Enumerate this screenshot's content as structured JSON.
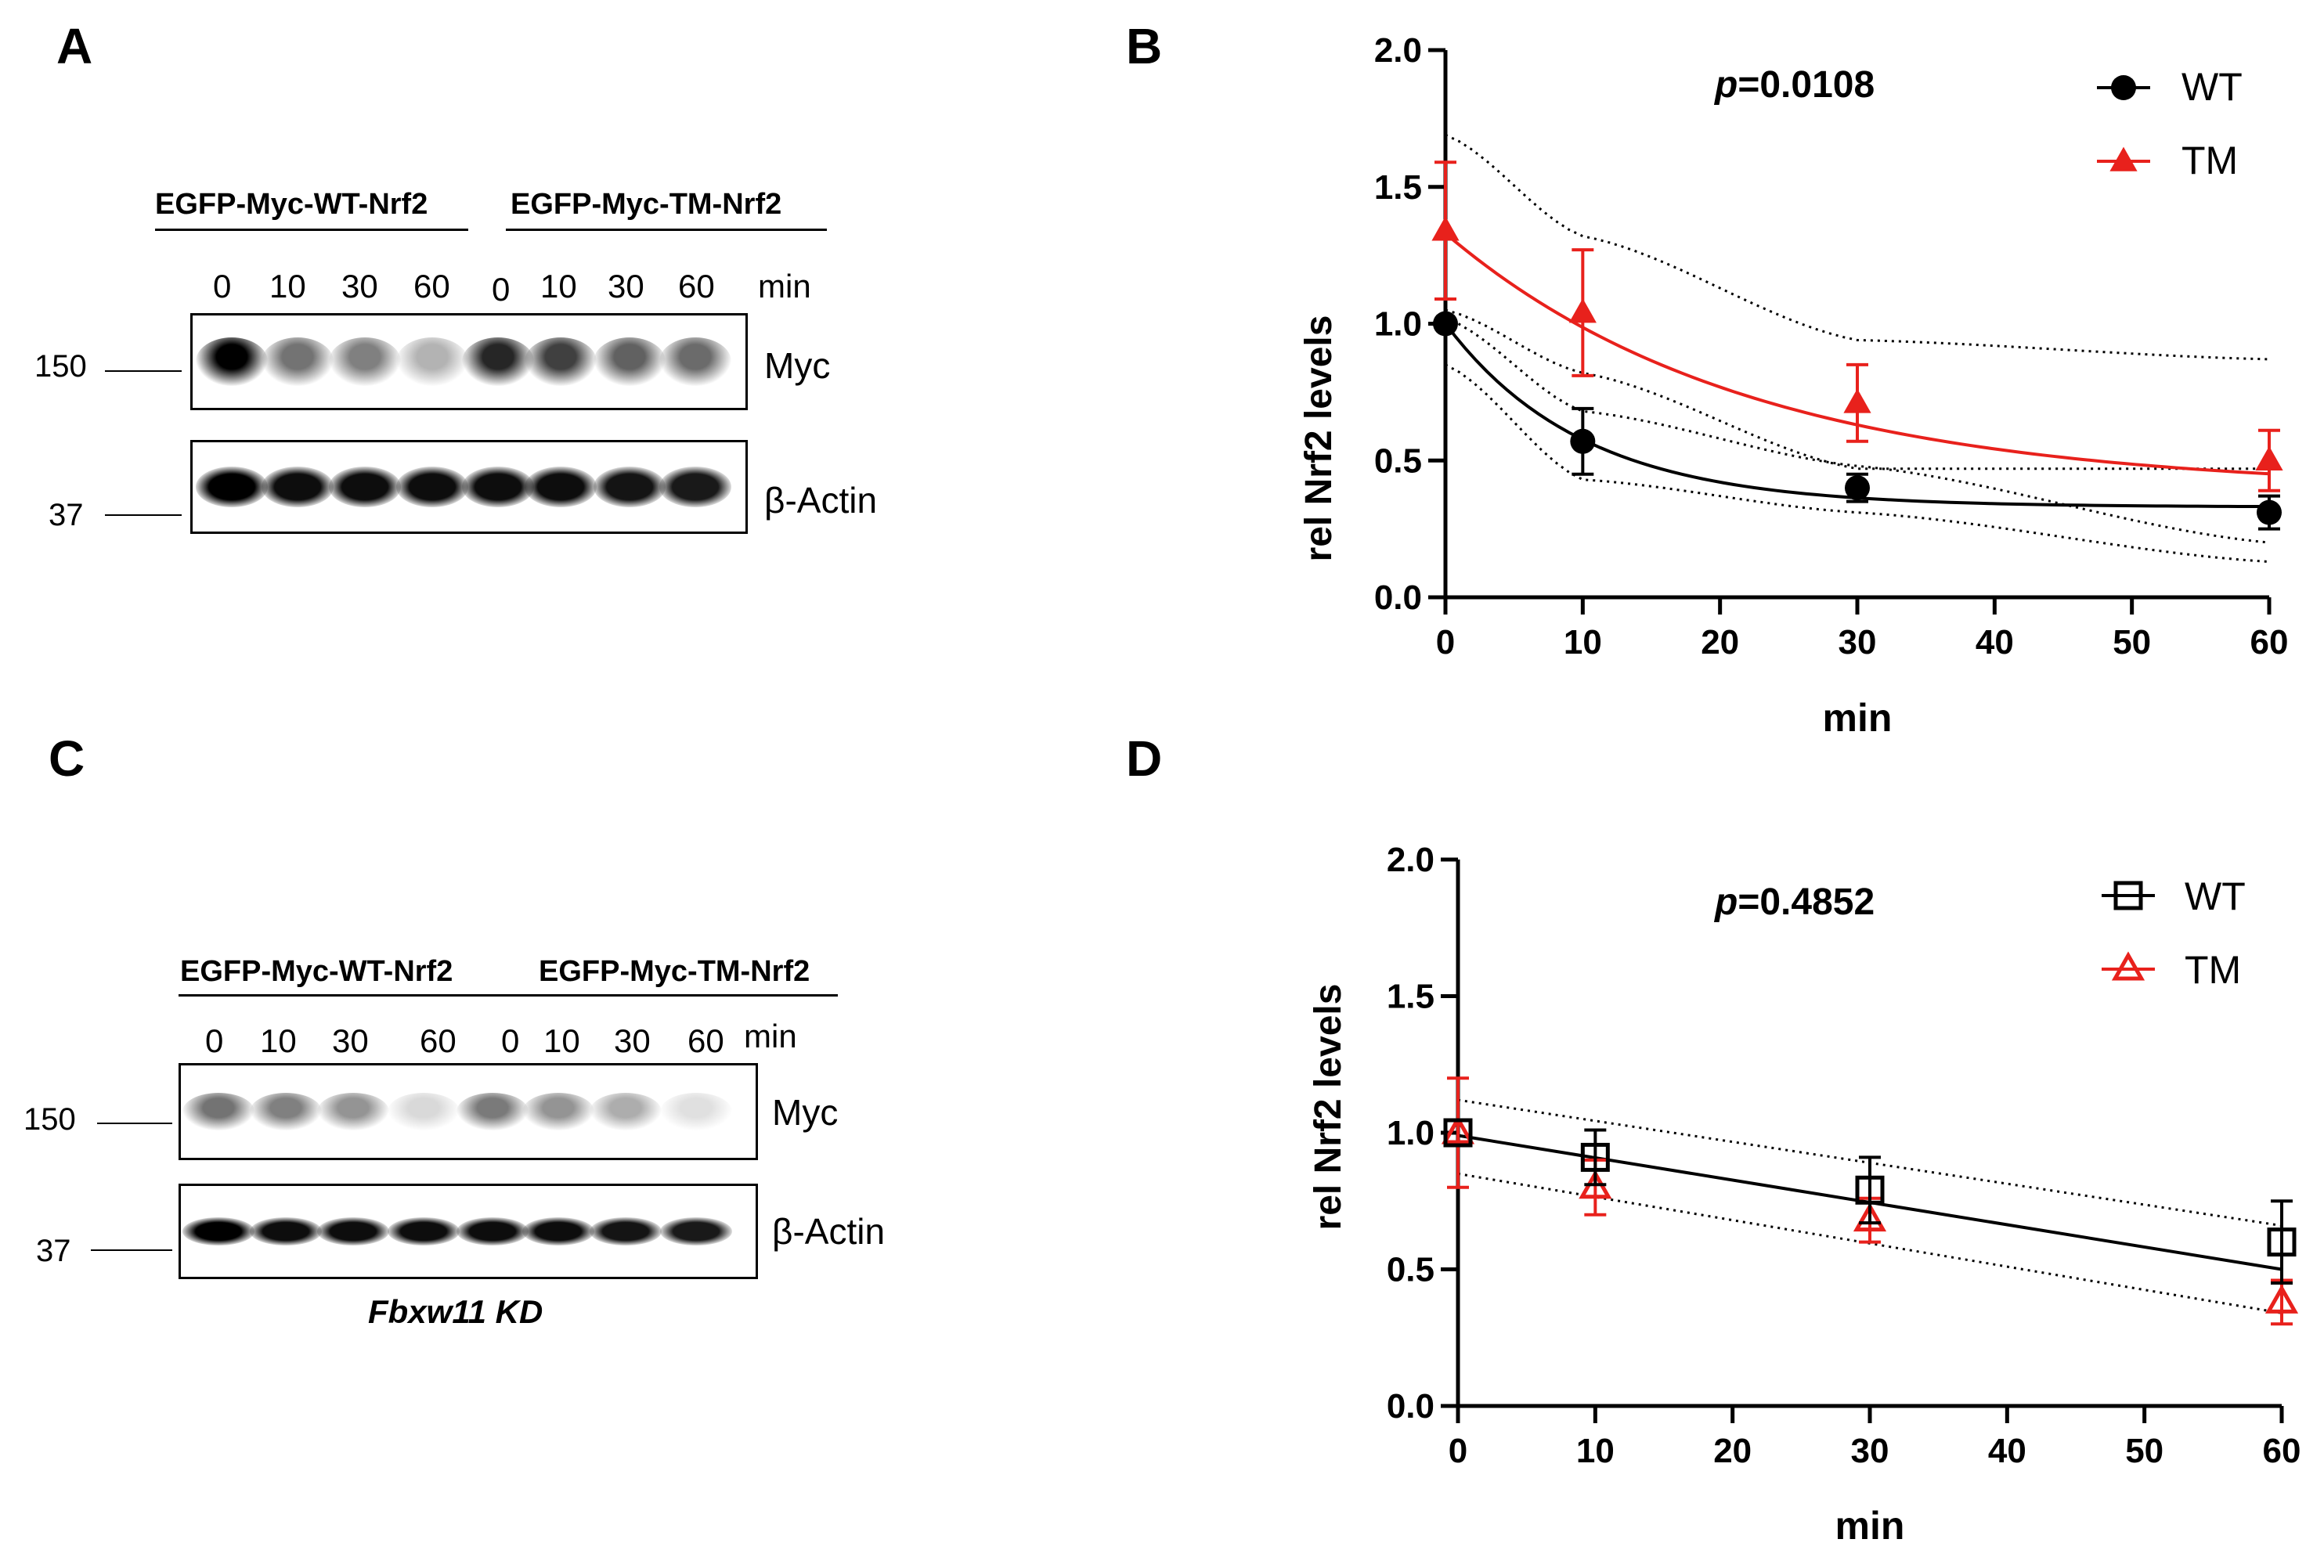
{
  "panels": {
    "A": {
      "letter": "A"
    },
    "B": {
      "letter": "B"
    },
    "C": {
      "letter": "C"
    },
    "D": {
      "letter": "D"
    }
  },
  "blot_top": {
    "header_wt": "EGFP-Myc-WT-Nrf2",
    "header_tm": "EGFP-Myc-TM-Nrf2",
    "timepoints": [
      "0",
      "10",
      "30",
      "60",
      "0",
      "10",
      "30",
      "60"
    ],
    "time_unit": "min",
    "mw_150": "150",
    "mw_37": "37",
    "protein_myc": "Myc",
    "protein_actin": "β-Actin",
    "myc_intensity": [
      1.0,
      0.55,
      0.5,
      0.3,
      0.85,
      0.75,
      0.62,
      0.58
    ],
    "actin_intensity": [
      1.0,
      0.95,
      0.95,
      0.95,
      0.95,
      0.95,
      0.92,
      0.9
    ]
  },
  "blot_bottom": {
    "header_wt": "EGFP-Myc-WT-Nrf2",
    "header_tm": "EGFP-Myc-TM-Nrf2",
    "timepoints": [
      "0",
      "10",
      "30",
      "60",
      "0",
      "10",
      "30",
      "60"
    ],
    "time_unit": "min",
    "mw_150": "150",
    "mw_37": "37",
    "protein_myc": "Myc",
    "protein_actin": "β-Actin",
    "condition": "Fbxw11 KD",
    "myc_intensity": [
      0.55,
      0.5,
      0.42,
      0.15,
      0.52,
      0.42,
      0.32,
      0.12
    ],
    "actin_intensity": [
      1.0,
      0.95,
      0.95,
      0.95,
      0.95,
      0.95,
      0.92,
      0.9
    ]
  },
  "colors": {
    "wt": "#000000",
    "tm": "#e8211c"
  },
  "chart_data": [
    {
      "id": "B",
      "type": "line",
      "ylabel": "rel Nrf2 levels",
      "xlabel": "min",
      "annotation": {
        "p_label": "p",
        "p_value": "=0.0108"
      },
      "xlim": [
        0,
        60
      ],
      "ylim": [
        0,
        2
      ],
      "xticks": [
        0,
        10,
        20,
        30,
        40,
        50,
        60
      ],
      "yticks": [
        0.0,
        0.5,
        1.0,
        1.5,
        2.0
      ],
      "xtick_labels": [
        "0",
        "10",
        "20",
        "30",
        "40",
        "50",
        "60"
      ],
      "ytick_labels": [
        "0.0",
        "0.5",
        "1.0",
        "1.5",
        "2.0"
      ],
      "legend": [
        {
          "name": "WT",
          "marker": "circle-filled",
          "color": "#000000"
        },
        {
          "name": "TM",
          "marker": "triangle-filled",
          "color": "#e8211c"
        }
      ],
      "series": [
        {
          "name": "WT",
          "color": "#000000",
          "marker": "circle-filled",
          "x": [
            0,
            10,
            30,
            60
          ],
          "y": [
            1.0,
            0.57,
            0.4,
            0.31
          ],
          "err": [
            0.0,
            0.12,
            0.05,
            0.06
          ],
          "fit": {
            "y0": 1.0,
            "plateau": 0.33,
            "k": 0.1
          },
          "ci_upper": [
            1.05,
            0.82,
            0.47,
            0.47
          ],
          "ci_lower": [
            0.85,
            0.43,
            0.31,
            0.13
          ],
          "ci_x": [
            0,
            10,
            30,
            60
          ]
        },
        {
          "name": "TM",
          "color": "#e8211c",
          "marker": "triangle-filled",
          "x": [
            0,
            10,
            30,
            60
          ],
          "y": [
            1.34,
            1.04,
            0.71,
            0.5
          ],
          "err": [
            0.25,
            0.23,
            0.14,
            0.11
          ],
          "fit": {
            "y0": 1.33,
            "plateau": 0.39,
            "k": 0.0455
          },
          "ci_upper": [
            1.69,
            1.32,
            0.94,
            0.87
          ],
          "ci_lower": [
            1.02,
            0.68,
            0.48,
            0.2
          ],
          "ci_x": [
            0,
            10,
            30,
            60
          ]
        }
      ]
    },
    {
      "id": "D",
      "type": "line",
      "ylabel": "rel Nrf2 levels",
      "xlabel": "min",
      "annotation": {
        "p_label": "p",
        "p_value": "=0.4852"
      },
      "xlim": [
        0,
        60
      ],
      "ylim": [
        0,
        2
      ],
      "xticks": [
        0,
        10,
        20,
        30,
        40,
        50,
        60
      ],
      "yticks": [
        0.0,
        0.5,
        1.0,
        1.5,
        2.0
      ],
      "xtick_labels": [
        "0",
        "10",
        "20",
        "30",
        "40",
        "50",
        "60"
      ],
      "ytick_labels": [
        "0.0",
        "0.5",
        "1.0",
        "1.5",
        "2.0"
      ],
      "legend": [
        {
          "name": "WT",
          "marker": "square-open",
          "color": "#000000"
        },
        {
          "name": "TM",
          "marker": "triangle-open",
          "color": "#e8211c"
        }
      ],
      "series": [
        {
          "name": "WT",
          "color": "#000000",
          "marker": "square-open",
          "x": [
            0,
            10,
            30,
            60
          ],
          "y": [
            1.0,
            0.91,
            0.79,
            0.6
          ],
          "err": [
            0.0,
            0.1,
            0.12,
            0.15
          ]
        },
        {
          "name": "TM",
          "color": "#e8211c",
          "marker": "triangle-open",
          "x": [
            0,
            10,
            30,
            60
          ],
          "y": [
            1.0,
            0.8,
            0.68,
            0.38
          ],
          "err": [
            0.2,
            0.1,
            0.08,
            0.08
          ]
        }
      ],
      "fit": {
        "x": [
          0,
          60
        ],
        "y": [
          0.99,
          0.5
        ]
      },
      "ci_upper": [
        1.12,
        0.66
      ],
      "ci_lower": [
        0.85,
        0.34
      ],
      "ci_x": [
        0,
        60
      ]
    }
  ]
}
